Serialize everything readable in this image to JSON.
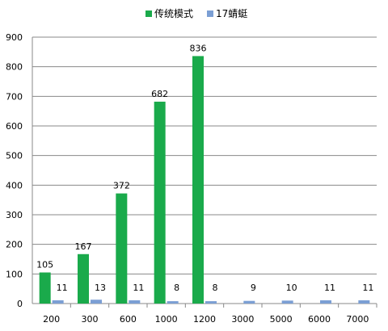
{
  "chart_data": {
    "type": "bar",
    "title": "",
    "xlabel": "",
    "ylabel": "",
    "categories": [
      "200",
      "300",
      "600",
      "1000",
      "1200",
      "3000",
      "5000",
      "6000",
      "7000"
    ],
    "series": [
      {
        "name": "传统模式",
        "color": "#1aaa4b",
        "values": [
          105,
          167,
          372,
          682,
          836,
          null,
          null,
          null,
          null
        ]
      },
      {
        "name": "17蜻蜓",
        "color": "#7b9fd4",
        "values": [
          11,
          13,
          11,
          8,
          8,
          9,
          10,
          11,
          11
        ]
      }
    ],
    "ylim": [
      0,
      900
    ],
    "yticks": [
      0,
      100,
      200,
      300,
      400,
      500,
      600,
      700,
      800,
      900
    ],
    "grid": true,
    "legend": "top-center"
  }
}
